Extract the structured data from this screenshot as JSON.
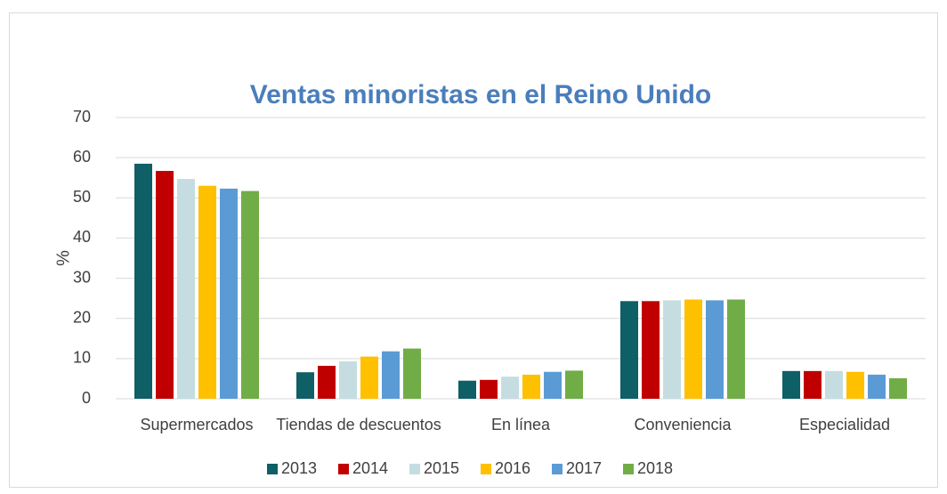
{
  "chart_data": {
    "type": "bar",
    "title": "Ventas minoristas en el Reino Unido",
    "y_label": "%",
    "categories": [
      "Supermercados",
      "Tiendas de descuentos",
      "En línea",
      "Conveniencia",
      "Especialidad"
    ],
    "series": [
      {
        "name": "2013",
        "color": "#0e5f66",
        "values": [
          58.5,
          6.6,
          4.5,
          24.3,
          6.9
        ]
      },
      {
        "name": "2014",
        "color": "#c00000",
        "values": [
          56.7,
          8.2,
          4.7,
          24.3,
          6.9
        ]
      },
      {
        "name": "2015",
        "color": "#c5dde0",
        "values": [
          54.7,
          9.3,
          5.5,
          24.5,
          6.9
        ]
      },
      {
        "name": "2016",
        "color": "#ffc000",
        "values": [
          53,
          10.5,
          6,
          24.7,
          6.7
        ]
      },
      {
        "name": "2017",
        "color": "#5b9bd5",
        "values": [
          52.3,
          11.8,
          6.7,
          24.5,
          6
        ]
      },
      {
        "name": "2018",
        "color": "#70ad47",
        "values": [
          51.7,
          12.5,
          7,
          24.7,
          5.1
        ]
      }
    ],
    "ylim": [
      0,
      70
    ],
    "yticks": [
      0,
      10,
      20,
      30,
      40,
      50,
      60,
      70
    ],
    "grid": true,
    "legend": "bottom"
  }
}
